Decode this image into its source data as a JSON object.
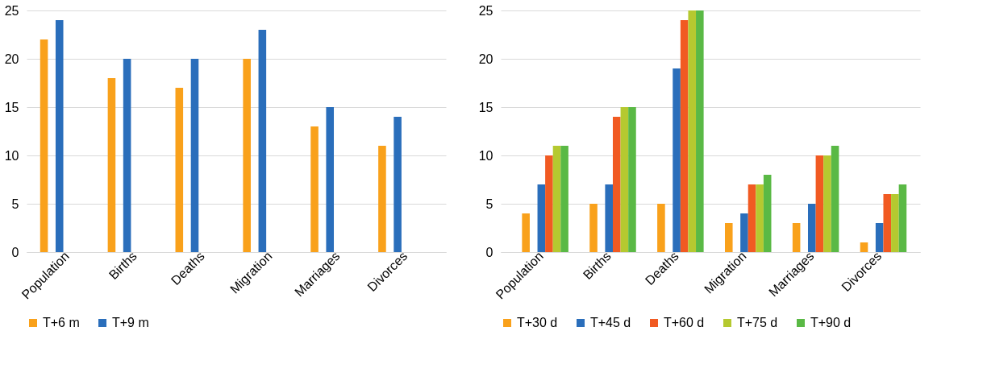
{
  "chart_data": [
    {
      "type": "bar",
      "categories": [
        "Population",
        "Births",
        "Deaths",
        "Migration",
        "Marriages",
        "Divorces"
      ],
      "series": [
        {
          "name": "T+6 m",
          "color": "#f9a11b",
          "values": [
            22,
            18,
            17,
            20,
            13,
            11
          ]
        },
        {
          "name": "T+9 m",
          "color": "#2a6ebb",
          "values": [
            24,
            20,
            20,
            23,
            15,
            14
          ]
        }
      ],
      "ylim": [
        0,
        25
      ],
      "yticks": [
        0,
        5,
        10,
        15,
        20,
        25
      ],
      "grid": "y",
      "legend": "bottom"
    },
    {
      "type": "bar",
      "categories": [
        "Population",
        "Births",
        "Deaths",
        "Migration",
        "Marriages",
        "Divorces"
      ],
      "series": [
        {
          "name": "T+30 d",
          "color": "#f9a11b",
          "values": [
            4,
            5,
            5,
            3,
            3,
            1
          ]
        },
        {
          "name": "T+45 d",
          "color": "#2a6ebb",
          "values": [
            7,
            7,
            19,
            4,
            5,
            3
          ]
        },
        {
          "name": "T+60 d",
          "color": "#f15a22",
          "values": [
            10,
            14,
            24,
            7,
            10,
            6
          ]
        },
        {
          "name": "T+75 d",
          "color": "#b5c930",
          "values": [
            11,
            15,
            25,
            7,
            10,
            6
          ]
        },
        {
          "name": "T+90 d",
          "color": "#5ab945",
          "values": [
            11,
            15,
            25,
            8,
            11,
            7
          ]
        }
      ],
      "ylim": [
        0,
        25
      ],
      "yticks": [
        0,
        5,
        10,
        15,
        20,
        25
      ],
      "grid": "y",
      "legend": "bottom"
    }
  ]
}
